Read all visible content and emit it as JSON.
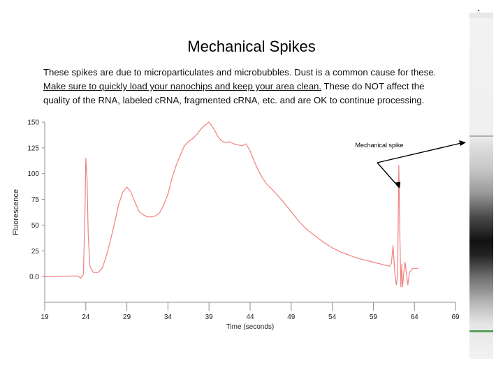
{
  "slide": {
    "title": "Mechanical Spikes",
    "body_line1": "These spikes are due to microparticulates and microbubbles. Dust is a common cause for these.",
    "body_line2_underlined": "Make sure to quickly load your nanochips and keep your area clean.",
    "body_line2_rest": " These do NOT affect the",
    "body_line3": "quality of the RNA, labeled cRNA, fragmented cRNA, etc. and are OK to continue processing."
  },
  "colors": {
    "trace": "#f08080",
    "axis": "#8c8c8c",
    "annotation": "#000000"
  },
  "chart_data": {
    "type": "line",
    "xlabel": "Time (seconds)",
    "ylabel": "Fluorescence",
    "xlim": [
      19,
      69
    ],
    "ylim": [
      -25,
      150
    ],
    "xticks": [
      "19",
      "24",
      "29",
      "34",
      "39",
      "44",
      "49",
      "54",
      "59",
      "64",
      "69"
    ],
    "yticks": [
      "150",
      "125",
      "100",
      "75",
      "50",
      "25",
      "0.0"
    ],
    "annotation": {
      "text": "Mechanical spike",
      "points_to": {
        "x": 62.3,
        "y": 92
      }
    },
    "series": [
      {
        "x": [
          19.0,
          20.0,
          21.0,
          22.0,
          23.0,
          23.4,
          23.7,
          23.9,
          24.0,
          24.15,
          24.3,
          24.5,
          24.9,
          25.5,
          26.0,
          26.5,
          27.0,
          27.5,
          28.0,
          28.5,
          29.0,
          29.5,
          30.0,
          30.5,
          31.0,
          31.5,
          32.0,
          32.5,
          33.0,
          33.5,
          34.0,
          34.5,
          35.0,
          35.5,
          36.0,
          36.5,
          37.0,
          37.5,
          38.0,
          38.5,
          39.0,
          39.3,
          39.7,
          40.0,
          40.5,
          41.0,
          41.5,
          42.0,
          42.5,
          43.0,
          43.5,
          44.0,
          44.5,
          45.0,
          45.5,
          46.0,
          47.0,
          48.0,
          49.0,
          50.0,
          51.0,
          52.0,
          53.0,
          54.0,
          55.0,
          56.0,
          57.0,
          58.0,
          59.0,
          59.5,
          60.0,
          60.5,
          61.0,
          61.2,
          61.4,
          61.6,
          61.8,
          61.95,
          62.1,
          62.25,
          62.35,
          62.45,
          62.55,
          62.7,
          62.85,
          63.0,
          63.2,
          63.4,
          63.6,
          63.8,
          64.0,
          64.5
        ],
        "values": [
          0,
          0,
          0.3,
          0.5,
          0.5,
          -1.5,
          2,
          60,
          115,
          95,
          40,
          10,
          4,
          4,
          8,
          20,
          35,
          52,
          70,
          82,
          87,
          82,
          72,
          63,
          60,
          58,
          58,
          59,
          62,
          70,
          80,
          96,
          108,
          118,
          127,
          131,
          134,
          138,
          143,
          147,
          150,
          147,
          142,
          137,
          132,
          130,
          131,
          129,
          128,
          127,
          129,
          122,
          112,
          103,
          96,
          90,
          82,
          73,
          63,
          53,
          45,
          39,
          33,
          28,
          24,
          21,
          18,
          16,
          14,
          13,
          12,
          11,
          10,
          13,
          30,
          5,
          -8,
          0,
          108,
          32,
          -10,
          12,
          -10,
          3,
          14,
          5,
          -8,
          4,
          6,
          8,
          8,
          8
        ]
      }
    ]
  }
}
